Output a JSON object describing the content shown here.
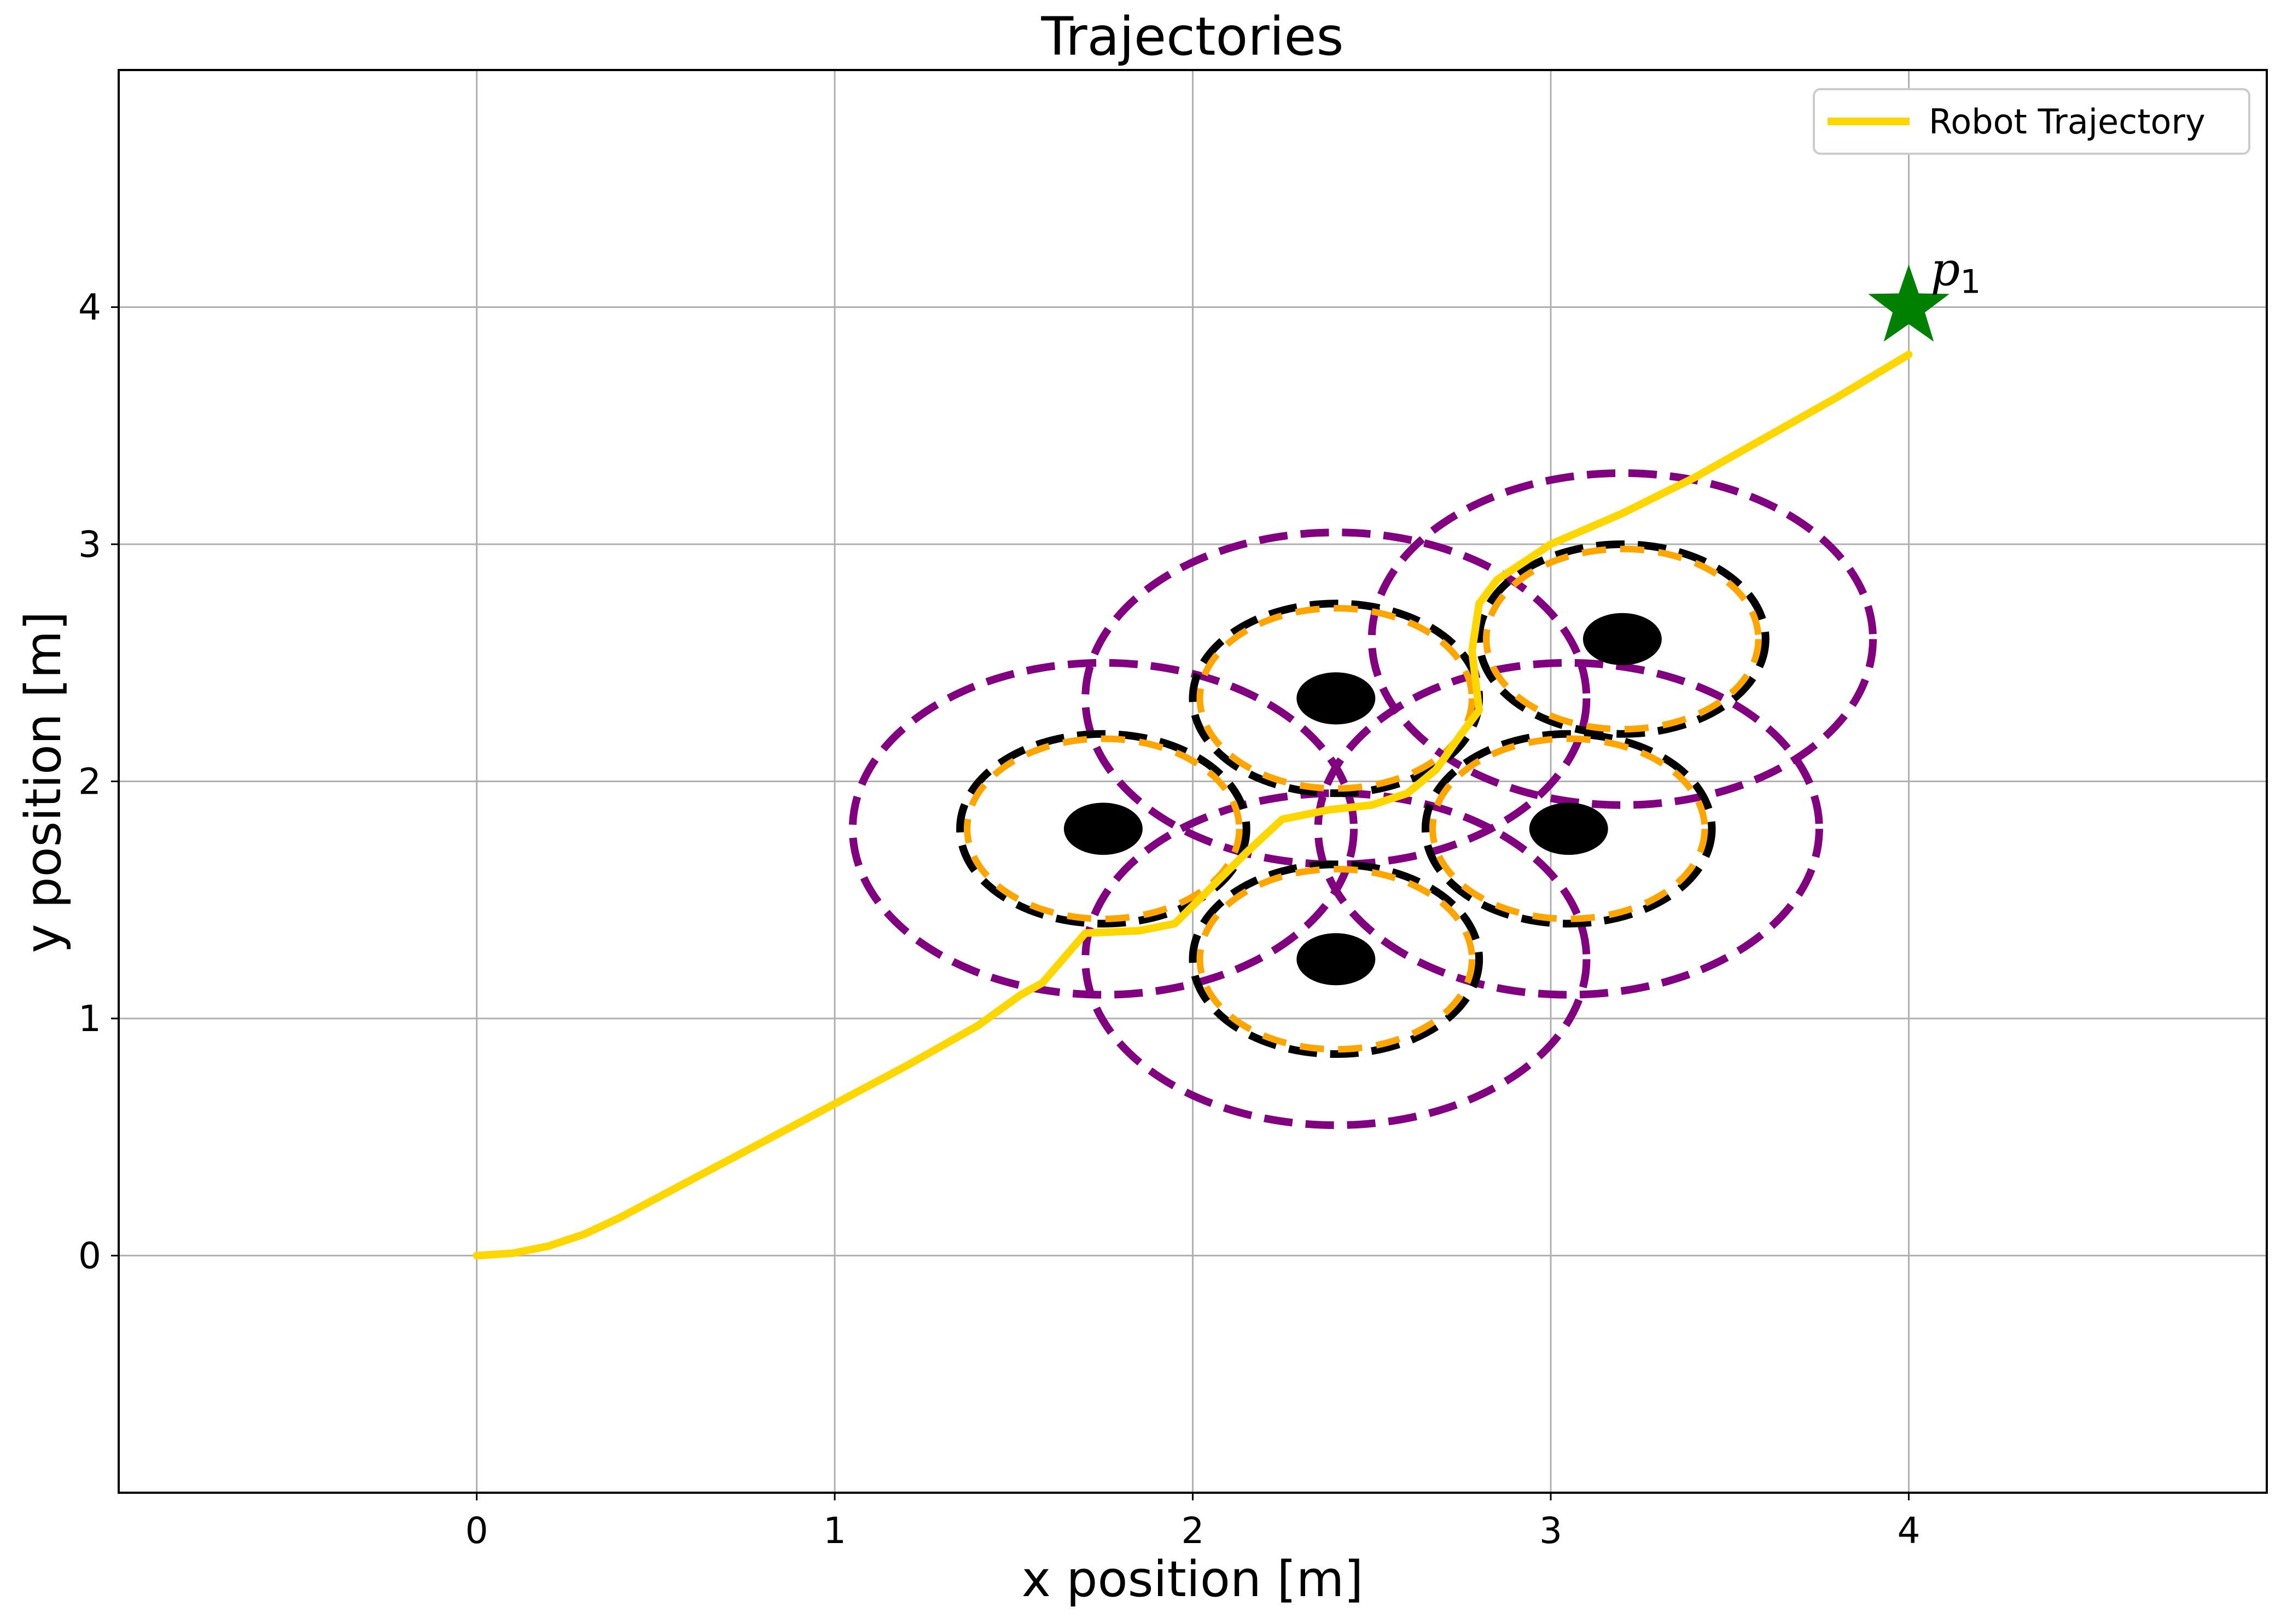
{
  "chart_data": {
    "type": "line",
    "title": "Trajectories",
    "xlabel": "x position [m]",
    "ylabel": "y position [m]",
    "xlim": [
      -1,
      5
    ],
    "ylim": [
      -1,
      5
    ],
    "xticks": [
      0,
      1,
      2,
      3,
      4
    ],
    "yticks": [
      0,
      1,
      2,
      3,
      4
    ],
    "grid": true,
    "legend": {
      "placement": "upper right",
      "entries": [
        "Robot Trajectory"
      ]
    },
    "colors": {
      "trajectory": "#ffd700",
      "outer_ring": "#800080",
      "inner_ring_orange": "#ffa500",
      "inner_ring_black": "#000000",
      "obstacle": "#000000",
      "goal": "#008000",
      "grid": "#b0b0b0"
    },
    "series": [
      {
        "name": "Robot Trajectory",
        "x": [
          0,
          0.1,
          0.2,
          0.3,
          0.4,
          0.6,
          0.8,
          1.0,
          1.2,
          1.4,
          1.52,
          1.58,
          1.7,
          1.85,
          1.95,
          2.05,
          2.15,
          2.25,
          2.38,
          2.5,
          2.6,
          2.68,
          2.75,
          2.8,
          2.78,
          2.8,
          2.85,
          2.92,
          3.0,
          3.2,
          3.4,
          3.6,
          3.8,
          4.0
        ],
        "y": [
          0,
          0.01,
          0.04,
          0.09,
          0.16,
          0.32,
          0.48,
          0.64,
          0.8,
          0.97,
          1.1,
          1.15,
          1.36,
          1.37,
          1.4,
          1.55,
          1.7,
          1.84,
          1.88,
          1.9,
          1.95,
          2.05,
          2.2,
          2.3,
          2.55,
          2.75,
          2.85,
          2.92,
          3.0,
          3.13,
          3.28,
          3.45,
          3.62,
          3.8
        ]
      }
    ],
    "obstacles": [
      {
        "x": 1.75,
        "y": 1.8,
        "radius": 0.11,
        "inner_radius": 0.38,
        "outer_radius": 0.7
      },
      {
        "x": 2.4,
        "y": 2.35,
        "radius": 0.11,
        "inner_radius": 0.38,
        "outer_radius": 0.7
      },
      {
        "x": 2.4,
        "y": 1.25,
        "radius": 0.11,
        "inner_radius": 0.38,
        "outer_radius": 0.7
      },
      {
        "x": 3.05,
        "y": 1.8,
        "radius": 0.11,
        "inner_radius": 0.38,
        "outer_radius": 0.7
      },
      {
        "x": 3.2,
        "y": 2.6,
        "radius": 0.11,
        "inner_radius": 0.38,
        "outer_radius": 0.7
      }
    ],
    "goal": {
      "x": 4.0,
      "y": 4.0
    },
    "annotations": [
      {
        "x": 4.0,
        "y": 4.0,
        "label": "p",
        "subscript": "1"
      }
    ]
  }
}
